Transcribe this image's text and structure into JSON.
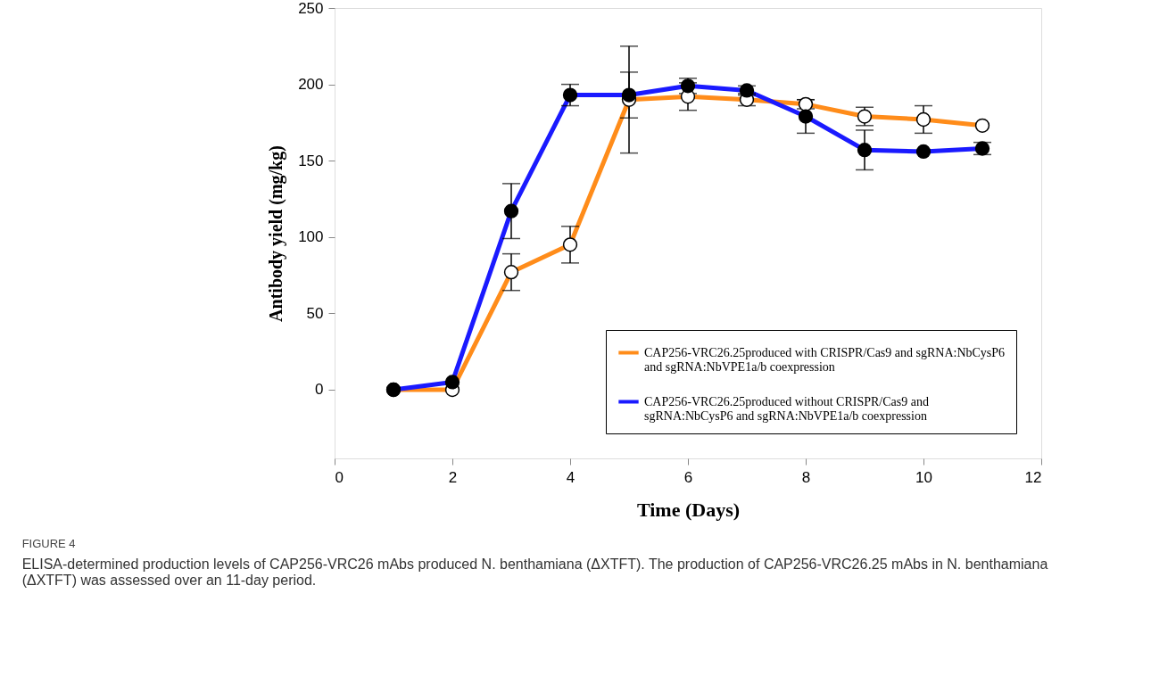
{
  "chart_data": {
    "type": "line",
    "title": "FIGURE 4",
    "xlabel": "Time (Days)",
    "ylabel": "Antibody yield (mg/kg)",
    "x": [
      1,
      2,
      3,
      4,
      5,
      6,
      7,
      8,
      9,
      10,
      11
    ],
    "series": [
      {
        "name": "CAP256-VRC26.25produced with CRISPR/Cas9 and sgRNA:NbCysP6 and sgRNA:NbVPE1a/b coexpression",
        "color": "#ff8c1a",
        "values": [
          0,
          0,
          77,
          95,
          190,
          192,
          190,
          187,
          179,
          177,
          173
        ],
        "errors": [
          null,
          null,
          12,
          12,
          35,
          9,
          4,
          3,
          6,
          9,
          null
        ]
      },
      {
        "name": "CAP256-VRC26.25produced without CRISPR/Cas9 and sgRNA:NbCysP6 and sgRNA:NbVPE1a/b coexpression",
        "color": "#1a1aff",
        "values": [
          0,
          5,
          117,
          193,
          193,
          199,
          196,
          179,
          157,
          156,
          158
        ],
        "errors": [
          null,
          null,
          18,
          7,
          15,
          5,
          3,
          11,
          13,
          null,
          4
        ]
      }
    ],
    "xlim": [
      0,
      12
    ],
    "xticks": [
      0,
      2,
      4,
      6,
      8,
      10,
      12
    ],
    "ylim": [
      -45,
      250
    ],
    "yticks": [
      0,
      50,
      100,
      150,
      200,
      250
    ],
    "grid": false,
    "legend": "bottom right",
    "marker": "circle",
    "line_style": "solid",
    "annotations": [
      "ELISA-determined production levels of CAP256-VRC26 mAbs produced N. benthamiana (ΔXTFT). The production of CAP256-VRC26.25 mAbs in N. benthamiana (ΔXTFT) was assessed over an 11-day period."
    ]
  }
}
